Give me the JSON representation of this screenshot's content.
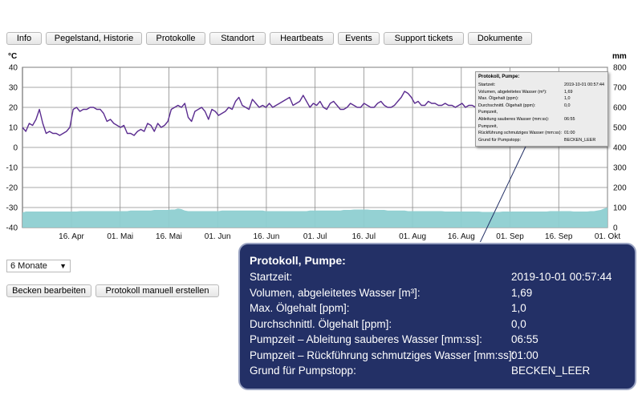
{
  "tabs": [
    "Info",
    "Pegelstand, Historie",
    "Protokolle",
    "Standort",
    "Heartbeats",
    "Events",
    "Support tickets",
    "Dokumente"
  ],
  "chart": {
    "left_unit": "°C",
    "right_unit": "mm"
  },
  "chart_data": {
    "type": "line",
    "x_ticks": [
      "16. Apr",
      "01. Mai",
      "16. Mai",
      "01. Jun",
      "16. Jun",
      "01. Jul",
      "16. Jul",
      "01. Aug",
      "16. Aug",
      "01. Sep",
      "16. Sep",
      "01. Okt"
    ],
    "y_left": {
      "unit": "°C",
      "ylim": [
        -40,
        40
      ],
      "ticks": [
        40,
        30,
        20,
        10,
        0,
        -10,
        -20,
        -30,
        -40
      ]
    },
    "y_right": {
      "unit": "mm",
      "ylim": [
        0,
        800
      ],
      "ticks": [
        800,
        700,
        600,
        500,
        400,
        300,
        200,
        100,
        0
      ]
    },
    "grid": true,
    "series": [
      {
        "axis": "left",
        "color": "#5b2d90",
        "x_days_approx": [
          0,
          1,
          2,
          3,
          4,
          5,
          6,
          7,
          8,
          9,
          10,
          11,
          12,
          13,
          14,
          15,
          16,
          17,
          18,
          19,
          20,
          21,
          22,
          23,
          24,
          25,
          26,
          27,
          28,
          29,
          30,
          31,
          32,
          33,
          34,
          35,
          36,
          37,
          38,
          39,
          40,
          41,
          42,
          43,
          44,
          45,
          46,
          47,
          48,
          49,
          50,
          51,
          52,
          53,
          54,
          55,
          56,
          57,
          58,
          59,
          60,
          61,
          62,
          63,
          64,
          65,
          66,
          67,
          68,
          69,
          70,
          71,
          72,
          73,
          74,
          75,
          76,
          77,
          78,
          79,
          80,
          81,
          82,
          83,
          84,
          85,
          86,
          87,
          88,
          89,
          90,
          91,
          92,
          93,
          94,
          95,
          96,
          97,
          98,
          99,
          100,
          101,
          102,
          103,
          104,
          105,
          106,
          107,
          108,
          109,
          110,
          111,
          112,
          113,
          114,
          115,
          116,
          117,
          118,
          119,
          120,
          121,
          122,
          123,
          124,
          125,
          126,
          127,
          128,
          129,
          130,
          131,
          132,
          133,
          134,
          135,
          136,
          137,
          138,
          139,
          140,
          141,
          142,
          143,
          144,
          145,
          146,
          147,
          148,
          149,
          150,
          151,
          152,
          153,
          154,
          155,
          156,
          157,
          158,
          159,
          160,
          161,
          162,
          163,
          164,
          165,
          166,
          167,
          168,
          169,
          170,
          171,
          172,
          173
        ],
        "values": [
          10,
          8,
          12,
          11,
          14,
          19,
          12,
          7,
          8,
          7,
          7,
          6,
          7,
          8,
          10,
          19,
          20,
          18,
          19,
          19,
          20,
          20,
          19,
          19,
          17,
          13,
          14,
          12,
          11,
          10,
          11,
          7,
          7,
          6,
          8,
          9,
          8,
          12,
          11,
          8,
          12,
          10,
          11,
          13,
          19,
          20,
          21,
          20,
          22,
          15,
          13,
          18,
          19,
          20,
          18,
          14,
          19,
          18,
          16,
          17,
          18,
          20,
          19,
          23,
          25,
          21,
          20,
          19,
          24,
          22,
          20,
          21,
          20,
          22,
          20,
          21,
          22,
          23,
          24,
          25,
          21,
          22,
          23,
          26,
          23,
          20,
          22,
          21,
          23,
          20,
          19,
          22,
          23,
          21,
          19,
          19,
          20,
          22,
          21,
          20,
          20,
          22,
          21,
          20,
          20,
          22,
          23,
          21,
          20,
          20,
          21,
          23,
          25,
          28,
          27,
          25,
          22,
          23,
          21,
          21,
          23,
          22,
          22,
          21,
          21,
          22,
          21,
          21,
          20,
          21,
          22,
          20,
          21,
          21,
          20,
          22,
          17,
          19,
          19,
          21,
          19,
          20,
          22,
          22,
          21,
          20,
          21,
          20,
          21,
          19,
          20,
          21,
          20,
          20,
          19,
          20,
          21,
          20,
          19,
          20,
          21,
          20,
          19,
          21,
          20,
          20,
          21,
          19,
          20,
          21,
          20,
          19,
          20,
          21
        ]
      },
      {
        "axis": "right",
        "color": "#8ecfd1",
        "values_mm_approx": [
          75,
          80,
          80,
          80,
          80,
          80,
          80,
          80,
          80,
          80,
          80,
          80,
          80,
          80,
          80,
          80,
          80,
          82,
          82,
          82,
          82,
          82,
          82,
          82,
          82,
          82,
          82,
          82,
          82,
          82,
          82,
          82,
          85,
          85,
          85,
          85,
          85,
          85,
          85,
          88,
          88,
          88,
          88,
          88,
          90,
          90,
          95,
          92,
          85,
          82,
          82,
          82,
          82,
          82,
          82,
          82,
          82,
          82,
          82,
          85,
          85,
          85,
          85,
          85,
          85,
          85,
          85,
          85,
          85,
          85,
          85,
          85,
          82,
          82,
          82,
          82,
          82,
          82,
          82,
          82,
          82,
          82,
          82,
          82,
          82,
          85,
          85,
          85,
          85,
          85,
          85,
          85,
          85,
          85,
          85,
          88,
          88,
          88,
          90,
          90,
          90,
          90,
          90,
          88,
          88,
          88,
          88,
          88,
          85,
          85,
          85,
          85,
          85,
          85,
          82,
          82,
          82,
          82,
          82,
          82,
          82,
          82,
          82,
          82,
          82,
          80,
          80,
          80,
          80,
          80,
          80,
          80,
          80,
          80,
          80,
          80,
          78,
          78,
          78,
          78,
          78,
          78,
          80,
          80,
          80,
          80,
          80,
          80,
          80,
          80,
          80,
          80,
          80,
          80,
          80,
          80,
          82,
          82,
          82,
          82,
          82,
          82,
          82,
          80,
          80,
          80,
          80,
          80,
          82,
          82,
          85,
          88,
          95,
          100
        ]
      }
    ]
  },
  "mini_tooltip": {
    "title": "Protokoll, Pumpe:",
    "rows": [
      {
        "label": "Startzeit:",
        "value": "2019-10-01 00:57:44"
      },
      {
        "label": "Volumen, abgeleitetes Wasser (m³):",
        "value": "1,69"
      },
      {
        "label": "Max. Ölgehalt (ppm):",
        "value": "1,0"
      },
      {
        "label": "Durchschnittl. Ölgehalt (ppm):",
        "value": "0,0"
      },
      {
        "label": "Pumpzeit,",
        "value": ""
      },
      {
        "label": "Ableitung sauberes Wasser (mm:ss):",
        "value": "06:55"
      },
      {
        "label": "Pumpzeit,",
        "value": ""
      },
      {
        "label": "Rückführung schmutziges Wasser (mm:ss):",
        "value": "01:00"
      },
      {
        "label": "Grund für Pumpstopp:",
        "value": "BECKEN_LEER"
      }
    ]
  },
  "period_select": {
    "value": "6 Monate"
  },
  "buttons": {
    "edit_basin": "Becken bearbeiten",
    "manual_log": "Protokoll manuell erstellen"
  },
  "popup": {
    "title": "Protokoll, Pumpe:",
    "rows": [
      {
        "label": "Startzeit:",
        "value": "2019-10-01 00:57:44"
      },
      {
        "label": "Volumen, abgeleitetes Wasser [m³]:",
        "value": "1,69"
      },
      {
        "label": "Max. Ölgehalt [ppm]:",
        "value": "1,0"
      },
      {
        "label": "Durchschnittl. Ölgehalt [ppm]:",
        "value": "0,0"
      },
      {
        "label": "Pumpzeit – Ableitung sauberes Wasser [mm:ss]:",
        "value": "06:55"
      },
      {
        "label": "Pumpzeit – Rückführung schmutziges Wasser [mm:ss]:",
        "value": "01:00"
      },
      {
        "label": "Grund für Pumpstopp:",
        "value": "BECKEN_LEER"
      }
    ]
  }
}
